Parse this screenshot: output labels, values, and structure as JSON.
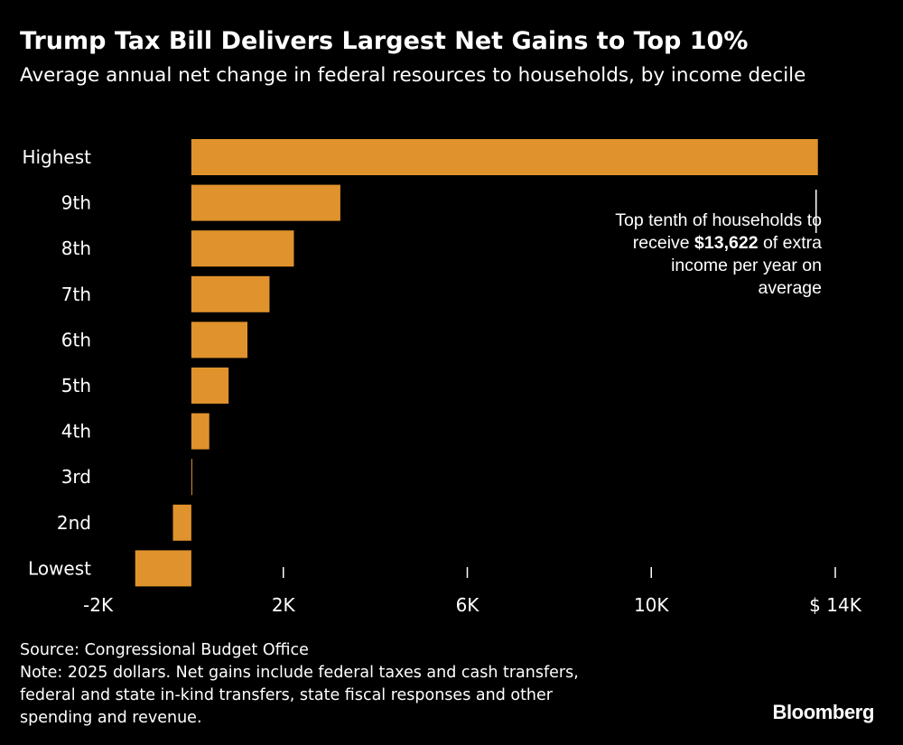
{
  "chart_data": {
    "type": "bar",
    "orientation": "horizontal",
    "title": "Trump Tax Bill Delivers Largest Net Gains to Top 10%",
    "subtitle": "Average annual net change in federal resources to households, by income decile",
    "categories": [
      "Highest",
      "9th",
      "8th",
      "7th",
      "6th",
      "5th",
      "4th",
      "3rd",
      "2nd",
      "Lowest"
    ],
    "values": [
      13622,
      3240,
      2230,
      1700,
      1220,
      810,
      390,
      20,
      -400,
      -1220
    ],
    "xlim": [
      -2000,
      14000
    ],
    "xticks": [
      {
        "value": -2000,
        "label": "-2K"
      },
      {
        "value": 2000,
        "label": "2K"
      },
      {
        "value": 6000,
        "label": "6K"
      },
      {
        "value": 10000,
        "label": "10K"
      },
      {
        "value": 14000,
        "label": "$ 14K"
      }
    ],
    "bar_color": "#E0922D",
    "background_color": "#000000",
    "text_color": "#FFFFFF",
    "grid": false,
    "annotation": {
      "target": "Highest",
      "text_before": "Top tenth of households to receive ",
      "highlight": "$13,622",
      "text_after": " of extra income per year on average"
    }
  },
  "footer": {
    "source": "Source: Congressional Budget Office",
    "note_lines": [
      "Note: 2025 dollars. Net gains include federal taxes and cash transfers,",
      "federal and state in-kind transfers, state fiscal responses and other",
      "spending and revenue."
    ]
  },
  "brand": {
    "logo_text": "Bloomberg"
  }
}
